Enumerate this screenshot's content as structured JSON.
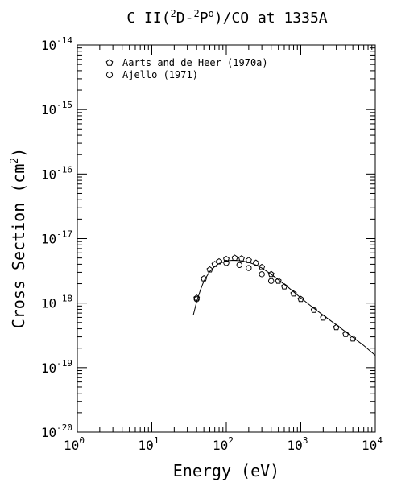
{
  "chart_data": {
    "type": "scatter",
    "title": {
      "prefix": "C II(",
      "sup1": "2",
      "mid": "D-",
      "sup2": "2",
      "p": "P",
      "o": "o",
      "suffix": ")/CO at 1335A"
    },
    "xlabel": "Energy (eV)",
    "ylabel": {
      "main": "Cross Section (cm",
      "sup": "2",
      "close": ")"
    },
    "xscale": "log",
    "yscale": "log",
    "xlim": [
      1,
      10000
    ],
    "ylim": [
      1e-20,
      1e-14
    ],
    "x_ticks": [
      {
        "value": 1,
        "base": "10",
        "exp": "0"
      },
      {
        "value": 10,
        "base": "10",
        "exp": "1"
      },
      {
        "value": 100,
        "base": "10",
        "exp": "2"
      },
      {
        "value": 1000,
        "base": "10",
        "exp": "3"
      },
      {
        "value": 10000,
        "base": "10",
        "exp": "4"
      }
    ],
    "y_ticks": [
      {
        "value": 1e-20,
        "base": "10",
        "exp": "-20"
      },
      {
        "value": 1e-19,
        "base": "10",
        "exp": "-19"
      },
      {
        "value": 1e-18,
        "base": "10",
        "exp": "-18"
      },
      {
        "value": 1e-17,
        "base": "10",
        "exp": "-17"
      },
      {
        "value": 1e-16,
        "base": "10",
        "exp": "-16"
      },
      {
        "value": 1e-15,
        "base": "10",
        "exp": "-15"
      },
      {
        "value": 1e-14,
        "base": "10",
        "exp": "-14"
      }
    ],
    "legend_position": "top-left",
    "series": [
      {
        "name": "Aarts and de Heer (1970a)",
        "marker": "pentagon",
        "x": [
          40,
          50,
          60,
          70,
          80,
          100,
          130,
          160,
          200,
          250,
          300,
          400,
          500,
          600,
          800,
          1000,
          1500,
          2000,
          3000,
          4000,
          5000
        ],
        "y": [
          1.2e-18,
          2.4e-18,
          3.3e-18,
          4e-18,
          4.4e-18,
          4.8e-18,
          5e-18,
          4.9e-18,
          4.6e-18,
          4.2e-18,
          3.6e-18,
          2.8e-18,
          2.2e-18,
          1.8e-18,
          1.4e-18,
          1.15e-18,
          7.8e-19,
          5.9e-19,
          4.2e-19,
          3.3e-19,
          2.8e-19
        ]
      },
      {
        "name": "Ajello (1971)",
        "marker": "circle",
        "x": [
          40,
          100,
          150,
          200,
          300,
          400
        ],
        "y": [
          1.15e-18,
          4.2e-18,
          3.9e-18,
          3.5e-18,
          2.8e-18,
          2.2e-18
        ]
      }
    ],
    "fit_curve": {
      "x": [
        36,
        40,
        45,
        50,
        60,
        70,
        80,
        100,
        120,
        150,
        200,
        250,
        300,
        400,
        500,
        700,
        1000,
        1500,
        2000,
        3000,
        5000,
        7000,
        10000
      ],
      "y": [
        6.5e-19,
        1.05e-18,
        1.6e-18,
        2.2e-18,
        3.1e-18,
        3.7e-18,
        4.1e-18,
        4.5e-18,
        4.6e-18,
        4.55e-18,
        4.3e-18,
        3.9e-18,
        3.5e-18,
        2.8e-18,
        2.3e-18,
        1.7e-18,
        1.2e-18,
        8.3e-19,
        6.5e-19,
        4.6e-19,
        2.95e-19,
        2.2e-19,
        1.55e-19
      ]
    }
  }
}
